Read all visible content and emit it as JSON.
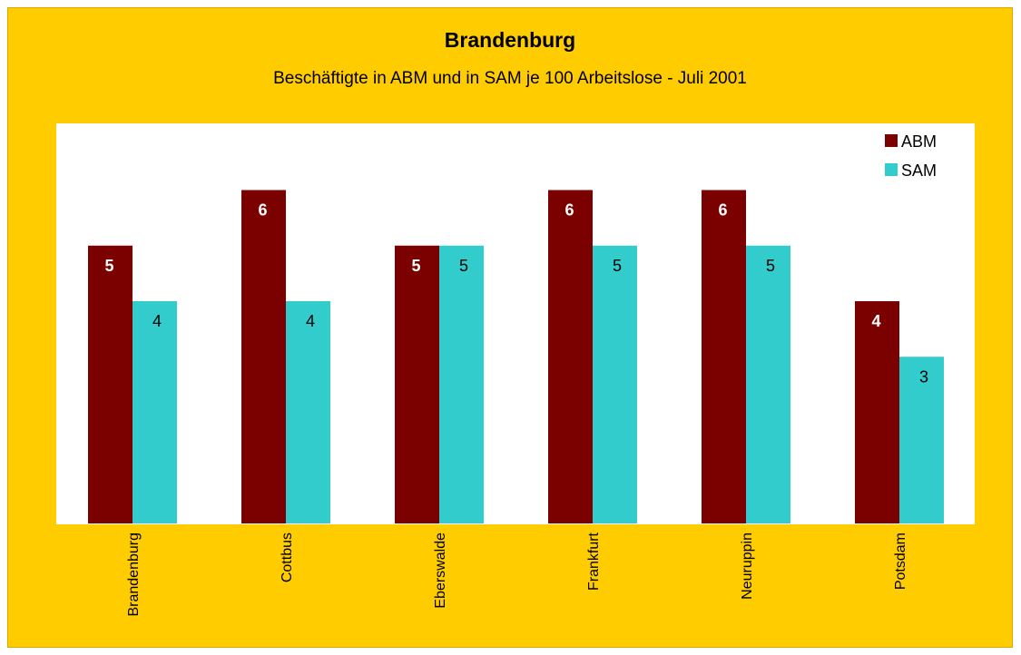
{
  "chart_data": {
    "type": "bar",
    "title": "Brandenburg",
    "subtitle": "Beschäftigte in ABM und in SAM je 100 Arbeitslose  - Juli 2001",
    "categories": [
      "Brandenburg",
      "Cottbus",
      "Eberswalde",
      "Frankfurt",
      "Neuruppin",
      "Potsdam"
    ],
    "series": [
      {
        "name": "ABM",
        "values": [
          5,
          6,
          5,
          6,
          6,
          4
        ],
        "color": "#7b0000",
        "label_color": "#ffffff",
        "label_bold": true
      },
      {
        "name": "SAM",
        "values": [
          4,
          4,
          5,
          5,
          5,
          3
        ],
        "color": "#33cccc",
        "label_color": "#000000",
        "label_bold": false
      }
    ],
    "ylim": [
      0,
      7.2
    ],
    "grid": false,
    "legend_position": "top-right",
    "background_color": "#ffcc00",
    "plot_background": "#ffffff"
  }
}
